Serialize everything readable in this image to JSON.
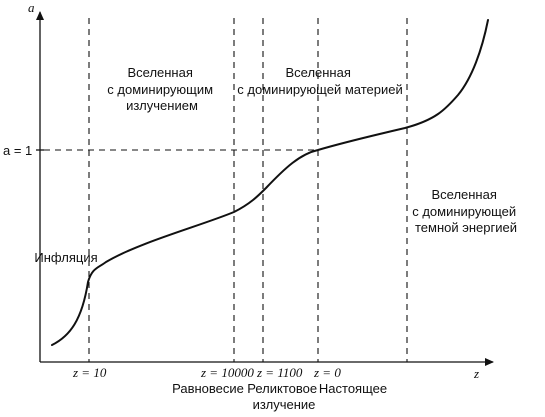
{
  "axes": {
    "y_label": "a",
    "x_label": "z",
    "y_tick_label": "a = 1"
  },
  "markers": [
    {
      "label": "z = 10"
    },
    {
      "label": "z = 10000"
    },
    {
      "label": "z = 1100"
    },
    {
      "label": "z = 0"
    }
  ],
  "events": [
    {
      "lines": [
        "Равновесие"
      ]
    },
    {
      "lines": [
        "Реликтовое",
        "излучение"
      ]
    },
    {
      "lines": [
        "Настоящее"
      ]
    }
  ],
  "eras": [
    {
      "lines": [
        "Инфляция"
      ]
    },
    {
      "lines": [
        "Вселенная",
        "с доминирующим",
        "излучением"
      ]
    },
    {
      "lines": [
        "Вселенная",
        "с доминирующей материей"
      ]
    },
    {
      "lines": [
        "Вселенная",
        "с доминирующей",
        "темной энергией"
      ]
    }
  ]
}
